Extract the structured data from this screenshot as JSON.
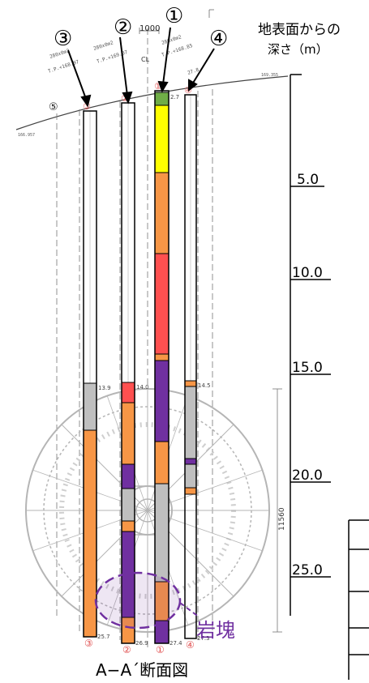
{
  "header": {
    "depth_title_line1": "地表面からの",
    "depth_title_line2": "深さ（m）"
  },
  "depth_scale": {
    "ticks": [
      "5.0",
      "10.0",
      "15.0",
      "20.0",
      "25.0"
    ]
  },
  "boreholes": [
    {
      "id": "1",
      "marker": "①",
      "label_bottom": "①",
      "depth_top": "2.7",
      "depth_bottom": "27.4",
      "layers": [
        {
          "color": "#70ad47"
        },
        {
          "color": "#ffff00"
        },
        {
          "color": "#f79646"
        },
        {
          "color": "#ff5050"
        },
        {
          "color": "#f79646"
        },
        {
          "color": "#7030a0"
        },
        {
          "color": "#f79646"
        },
        {
          "color": "#bfbfbf"
        },
        {
          "color": "#f79646"
        },
        {
          "color": "#7030a0"
        },
        {
          "color": "#f79646"
        }
      ]
    },
    {
      "id": "2",
      "marker": "②",
      "label_bottom": "②",
      "depth_top": "14.0",
      "depth_bottom": "26.9",
      "layers": [
        {
          "color": "#ff5050"
        },
        {
          "color": "#f79646"
        },
        {
          "color": "#7030a0"
        },
        {
          "color": "#bfbfbf"
        },
        {
          "color": "#f79646"
        },
        {
          "color": "#7030a0"
        },
        {
          "color": "#f79646"
        }
      ]
    },
    {
      "id": "3",
      "marker": "③",
      "label_bottom": "③",
      "depth_top": "13.9",
      "depth_bottom": "25.7",
      "layers": [
        {
          "color": "#bfbfbf"
        },
        {
          "color": "#f79646"
        }
      ]
    },
    {
      "id": "4",
      "marker": "④",
      "label_bottom": "④",
      "depth_top": "14.5",
      "depth_bottom": "27.3",
      "layers": [
        {
          "color": "#f79646"
        },
        {
          "color": "#bfbfbf"
        },
        {
          "color": "#7030a0"
        },
        {
          "color": "#bfbfbf"
        },
        {
          "color": "#f79646"
        }
      ]
    }
  ],
  "annotations": {
    "rock_mass": "岩塊",
    "section_title": "A−A´断面図",
    "tunnel_width": "11560",
    "centerline_dim": "1000",
    "cl": "CL",
    "marker_five": "⑤"
  },
  "colors": {
    "fill_soil": "#f79646",
    "rock": "#7030a0",
    "clay": "#bfbfbf",
    "topsoil": "#70ad47",
    "sand": "#ffff00",
    "red_layer": "#ff5050",
    "rock_label": "#7030a0"
  }
}
